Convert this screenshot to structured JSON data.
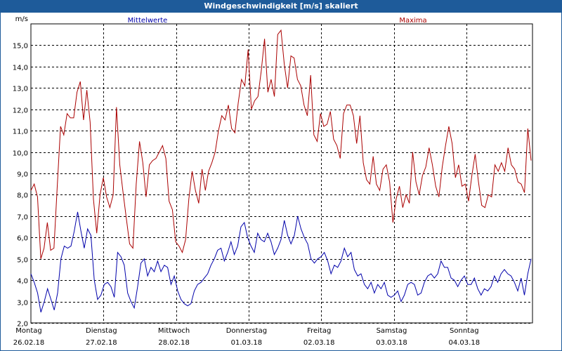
{
  "window": {
    "title": "Windgeschwindigkeit [m/s] skaliert"
  },
  "chart_data": {
    "type": "line",
    "ylabel": "m/s",
    "ylim": [
      2.0,
      16.0
    ],
    "yticks": [
      "2,0",
      "3,0",
      "4,0",
      "5,0",
      "6,0",
      "7,0",
      "8,0",
      "9,0",
      "10,0",
      "11,0",
      "12,0",
      "13,0",
      "14,0",
      "15,0"
    ],
    "ytick_values": [
      2,
      3,
      4,
      5,
      6,
      7,
      8,
      9,
      10,
      11,
      12,
      13,
      14,
      15
    ],
    "days": [
      {
        "weekday": "Montag",
        "date": "26.02.18"
      },
      {
        "weekday": "Dienstag",
        "date": "27.02.18"
      },
      {
        "weekday": "Mittwoch",
        "date": "28.02.18"
      },
      {
        "weekday": "Donnerstag",
        "date": "01.03.18"
      },
      {
        "weekday": "Freitag",
        "date": "02.03.18"
      },
      {
        "weekday": "Samstag",
        "date": "03.03.18"
      },
      {
        "weekday": "Sonntag",
        "date": "04.03.18"
      }
    ],
    "grid": true,
    "series": [
      {
        "name": "Mittelwerte",
        "color": "#0000aa",
        "values": [
          4.3,
          3.9,
          3.4,
          2.5,
          3.0,
          3.6,
          3.1,
          2.6,
          3.4,
          5.0,
          5.6,
          5.5,
          5.6,
          6.3,
          7.2,
          6.3,
          5.5,
          6.4,
          6.1,
          4.0,
          3.1,
          3.3,
          3.8,
          3.9,
          3.7,
          3.2,
          5.3,
          5.1,
          4.7,
          3.4,
          3.0,
          2.7,
          3.7,
          4.8,
          5.0,
          4.2,
          4.6,
          4.4,
          4.9,
          4.4,
          4.7,
          4.6,
          3.8,
          4.2,
          3.5,
          3.1,
          2.9,
          2.8,
          2.9,
          3.5,
          3.8,
          3.9,
          4.1,
          4.3,
          4.7,
          5.0,
          5.4,
          5.5,
          4.9,
          5.3,
          5.8,
          5.2,
          5.6,
          6.5,
          6.7,
          6.0,
          5.6,
          5.3,
          6.2,
          5.9,
          5.8,
          6.2,
          5.8,
          5.2,
          5.5,
          5.9,
          6.8,
          6.1,
          5.7,
          6.1,
          7.0,
          6.4,
          6.0,
          5.7,
          5.0,
          4.8,
          5.0,
          5.1,
          5.3,
          4.9,
          4.3,
          4.7,
          4.6,
          4.9,
          5.5,
          5.1,
          5.3,
          4.5,
          4.2,
          4.3,
          3.8,
          3.6,
          3.9,
          3.4,
          3.8,
          3.6,
          3.9,
          3.3,
          3.2,
          3.3,
          3.5,
          3.0,
          3.3,
          3.8,
          3.9,
          3.8,
          3.3,
          3.4,
          3.9,
          4.2,
          4.3,
          4.1,
          4.3,
          4.9,
          4.6,
          4.6,
          4.1,
          4.0,
          3.7,
          4.0,
          4.2,
          3.8,
          3.8,
          4.1,
          3.6,
          3.3,
          3.6,
          3.5,
          3.7,
          4.2,
          3.9,
          4.3,
          4.5,
          4.3,
          4.2,
          3.9,
          3.5,
          4.1,
          3.3,
          4.3,
          5.0
        ]
      },
      {
        "name": "Maxima",
        "color": "#aa0000",
        "values": [
          8.2,
          8.5,
          7.9,
          5.0,
          5.5,
          6.7,
          5.4,
          5.5,
          8.4,
          11.2,
          10.8,
          11.8,
          11.6,
          11.6,
          12.8,
          13.3,
          11.5,
          12.9,
          11.4,
          7.8,
          6.2,
          8.0,
          8.8,
          7.9,
          7.4,
          8.0,
          12.1,
          9.4,
          8.1,
          6.9,
          5.7,
          5.5,
          8.5,
          10.5,
          9.5,
          7.9,
          9.4,
          9.6,
          9.7,
          10.0,
          10.3,
          9.7,
          7.7,
          7.3,
          5.8,
          5.6,
          5.3,
          5.9,
          7.8,
          9.1,
          8.2,
          7.6,
          9.2,
          8.2,
          9.1,
          9.5,
          10.0,
          11.0,
          11.7,
          11.5,
          12.2,
          11.1,
          10.9,
          12.3,
          13.4,
          13.1,
          14.8,
          12.0,
          12.4,
          12.6,
          13.8,
          15.3,
          12.8,
          13.4,
          12.6,
          15.5,
          15.7,
          14.1,
          13.0,
          14.5,
          14.4,
          13.4,
          13.1,
          12.2,
          11.7,
          13.6,
          10.8,
          10.5,
          11.8,
          11.2,
          11.3,
          11.9,
          10.6,
          10.3,
          9.7,
          11.8,
          12.2,
          12.2,
          11.7,
          10.4,
          11.7,
          9.5,
          8.7,
          8.5,
          9.8,
          8.5,
          8.2,
          9.2,
          9.4,
          8.6,
          6.7,
          7.8,
          8.4,
          7.4,
          8.0,
          7.6,
          10.0,
          8.6,
          8.0,
          8.9,
          9.3,
          10.2,
          9.4,
          8.4,
          7.9,
          9.3,
          10.3,
          11.2,
          10.4,
          8.8,
          9.4,
          8.4,
          8.5,
          7.7,
          8.9,
          9.9,
          8.6,
          7.5,
          7.4,
          8.0,
          7.9,
          9.4,
          9.1,
          9.5,
          9.1,
          10.2,
          9.4,
          9.2,
          8.6,
          8.5,
          8.1,
          11.1,
          9.6
        ]
      }
    ]
  }
}
